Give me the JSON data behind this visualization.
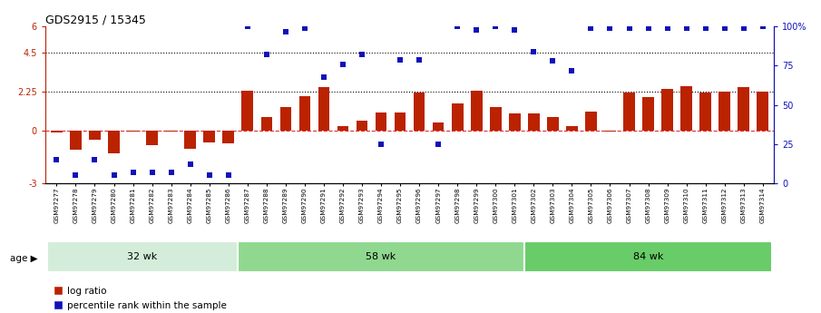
{
  "title": "GDS2915 / 15345",
  "samples": [
    "GSM97277",
    "GSM97278",
    "GSM97279",
    "GSM97280",
    "GSM97281",
    "GSM97282",
    "GSM97283",
    "GSM97284",
    "GSM97285",
    "GSM97286",
    "GSM97287",
    "GSM97288",
    "GSM97289",
    "GSM97290",
    "GSM97291",
    "GSM97292",
    "GSM97293",
    "GSM97294",
    "GSM97295",
    "GSM97296",
    "GSM97297",
    "GSM97298",
    "GSM97299",
    "GSM97300",
    "GSM97301",
    "GSM97302",
    "GSM97303",
    "GSM97304",
    "GSM97305",
    "GSM97306",
    "GSM97307",
    "GSM97308",
    "GSM97309",
    "GSM97310",
    "GSM97311",
    "GSM97312",
    "GSM97313",
    "GSM97314"
  ],
  "log_ratio": [
    -0.1,
    -1.1,
    -0.5,
    -1.3,
    -0.05,
    -0.8,
    -0.05,
    -1.05,
    -0.65,
    -0.7,
    2.3,
    0.8,
    1.35,
    2.0,
    2.5,
    0.3,
    0.6,
    1.05,
    1.05,
    2.2,
    0.5,
    1.6,
    2.3,
    1.35,
    1.0,
    1.0,
    0.8,
    0.3,
    1.1,
    -0.05,
    2.2,
    1.95,
    2.4,
    2.55,
    2.2,
    2.25,
    2.5,
    2.25
  ],
  "percentile_pct": [
    15,
    5,
    15,
    5,
    7,
    7,
    7,
    12,
    5,
    5,
    100,
    82,
    97,
    99,
    68,
    76,
    82,
    25,
    79,
    79,
    25,
    100,
    98,
    100,
    98,
    84,
    78,
    72,
    99,
    99,
    99,
    99,
    99,
    99,
    99,
    99,
    99,
    100
  ],
  "groups": [
    {
      "label": "32 wk",
      "start": 0,
      "end": 9,
      "color": "#d4edda"
    },
    {
      "label": "58 wk",
      "start": 10,
      "end": 24,
      "color": "#90d890"
    },
    {
      "label": "84 wk",
      "start": 25,
      "end": 37,
      "color": "#68cc68"
    }
  ],
  "bar_color": "#bb2200",
  "dot_color": "#1111bb",
  "ylim_left": [
    -3,
    6
  ],
  "ylim_right": [
    0,
    100
  ],
  "zero_line_color": "#cc0000",
  "bg_color": "white",
  "legend_items": [
    {
      "label": "log ratio",
      "color": "#bb2200"
    },
    {
      "label": "percentile rank within the sample",
      "color": "#1111bb"
    }
  ]
}
